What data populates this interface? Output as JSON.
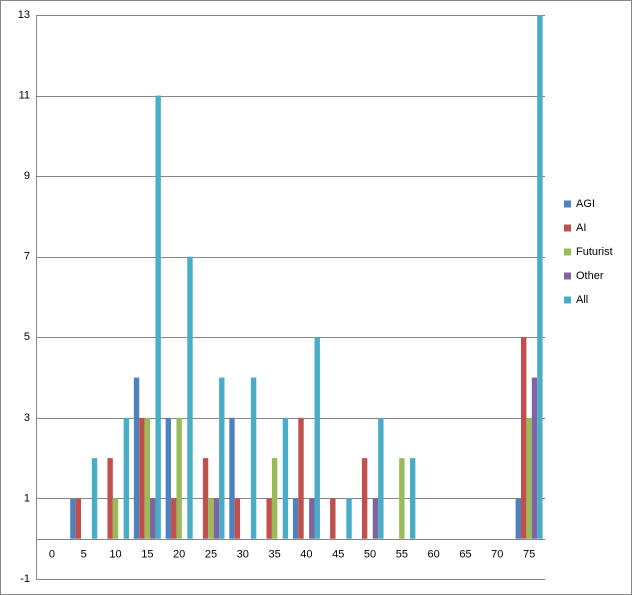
{
  "chart_data": {
    "type": "bar",
    "categories": [
      "0",
      "5",
      "10",
      "15",
      "20",
      "25",
      "30",
      "35",
      "40",
      "45",
      "50",
      "55",
      "60",
      "65",
      "70",
      "75"
    ],
    "series": [
      {
        "name": "AGI",
        "color": "#4f81bd",
        "values": [
          0,
          1,
          0,
          4,
          3,
          0,
          3,
          0,
          1,
          0,
          0,
          0,
          0,
          0,
          0,
          1
        ]
      },
      {
        "name": "AI",
        "color": "#c0504d",
        "values": [
          0,
          1,
          2,
          3,
          1,
          2,
          1,
          1,
          3,
          1,
          2,
          0,
          0,
          0,
          0,
          5
        ]
      },
      {
        "name": "Futurist",
        "color": "#9bbb59",
        "values": [
          0,
          0,
          1,
          3,
          3,
          1,
          0,
          2,
          0,
          0,
          0,
          2,
          0,
          0,
          0,
          3
        ]
      },
      {
        "name": "Other",
        "color": "#8064a2",
        "values": [
          0,
          0,
          0,
          1,
          0,
          1,
          0,
          0,
          1,
          0,
          1,
          0,
          0,
          0,
          0,
          4
        ]
      },
      {
        "name": "All",
        "color": "#4bacc6",
        "values": [
          0,
          2,
          3,
          11,
          7,
          4,
          4,
          3,
          5,
          1,
          3,
          2,
          0,
          0,
          0,
          13
        ]
      }
    ],
    "ylim": [
      -1,
      13
    ],
    "yticks": [
      -1,
      1,
      3,
      5,
      7,
      9,
      11,
      13
    ],
    "grid": true,
    "legend": "right"
  }
}
